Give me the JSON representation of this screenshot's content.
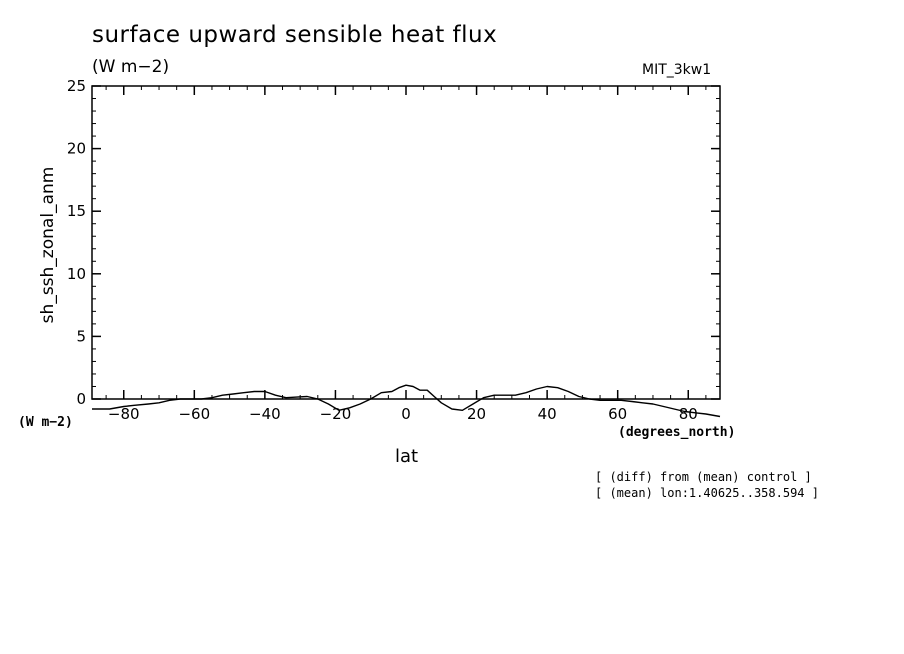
{
  "header": {
    "title": "surface upward sensible heat flux",
    "subtitle": "(W m−2)",
    "model": "MIT_3kw1"
  },
  "notes": [
    "[ (diff) from (mean) control ]",
    "[ (mean) lon:1.40625..358.594 ]"
  ],
  "chart_data": {
    "type": "line",
    "title": "surface upward sensible heat flux",
    "ylabel": "sh_ssh_zonal_anm",
    "yunits": "(W m−2)",
    "xlabel": "lat",
    "xunits": "(degrees_north)",
    "xlim": [
      -89,
      89
    ],
    "ylim": [
      0,
      25
    ],
    "xticks": [
      -80,
      -60,
      -40,
      -20,
      0,
      20,
      40,
      60,
      80
    ],
    "xtick_labels": [
      "−80",
      "−60",
      "−40",
      "−20",
      "0",
      "20",
      "40",
      "60",
      "80"
    ],
    "yticks": [
      0,
      5,
      10,
      15,
      20,
      25
    ],
    "ytick_labels": [
      "0",
      "5",
      "10",
      "15",
      "20",
      "25"
    ],
    "grid": false,
    "series": [
      {
        "color": "#000000",
        "x": [
          -89,
          -84,
          -80,
          -77,
          -73,
          -70,
          -67,
          -64,
          -61,
          -58,
          -55,
          -52,
          -49,
          -46,
          -43,
          -40,
          -37,
          -34,
          -31,
          -28,
          -25,
          -22,
          -19,
          -16,
          -13,
          -10,
          -7,
          -4,
          -2,
          0,
          2,
          4,
          6,
          8,
          10,
          13,
          16,
          19,
          22,
          25,
          28,
          31,
          34,
          37,
          40,
          43,
          46,
          49,
          52,
          55,
          58,
          61,
          64,
          67,
          70,
          73,
          76,
          79,
          82,
          85,
          89
        ],
        "y": [
          -0.8,
          -0.8,
          -0.6,
          -0.5,
          -0.4,
          -0.3,
          -0.1,
          0.0,
          0.0,
          0.0,
          0.1,
          0.3,
          0.4,
          0.5,
          0.6,
          0.6,
          0.3,
          0.1,
          0.15,
          0.2,
          0.0,
          -0.4,
          -0.9,
          -0.7,
          -0.4,
          0.0,
          0.5,
          0.6,
          0.9,
          1.1,
          1.0,
          0.7,
          0.7,
          0.2,
          -0.3,
          -0.8,
          -0.9,
          -0.4,
          0.1,
          0.3,
          0.3,
          0.3,
          0.5,
          0.8,
          1.0,
          0.9,
          0.6,
          0.2,
          0.0,
          -0.1,
          -0.1,
          -0.1,
          -0.2,
          -0.3,
          -0.4,
          -0.6,
          -0.8,
          -1.0,
          -1.1,
          -1.2,
          -1.4
        ]
      }
    ]
  }
}
